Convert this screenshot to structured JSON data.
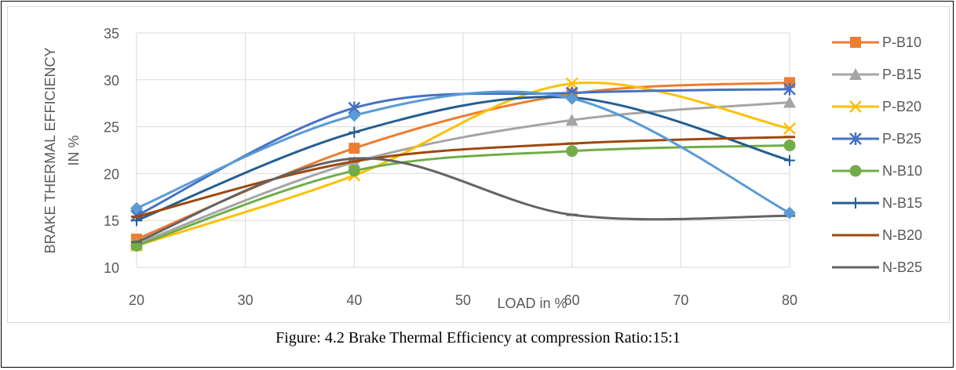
{
  "caption": "Figure: 4.2 Brake Thermal Efficiency at compression Ratio:15:1",
  "chart_data": {
    "type": "line",
    "title": "",
    "xlabel": "LOAD in %",
    "ylabel_lines": [
      "BRAKE THERMAL EFFICIENCY",
      "IN %"
    ],
    "x_ticks": [
      20,
      30,
      40,
      50,
      60,
      70,
      80
    ],
    "y_ticks": [
      10,
      15,
      20,
      25,
      30,
      35
    ],
    "xlim": [
      20,
      80
    ],
    "ylim": [
      10,
      35
    ],
    "grid": true,
    "legend_position": "right",
    "x": [
      20,
      40,
      60,
      80
    ],
    "series": [
      {
        "name": "P-B10",
        "color": "#ED7D31",
        "marker": "square",
        "values": [
          13.0,
          22.7,
          28.5,
          29.7
        ]
      },
      {
        "name": "P-B15",
        "color": "#A5A5A5",
        "marker": "triangle",
        "values": [
          12.5,
          21.2,
          25.7,
          27.6
        ]
      },
      {
        "name": "P-B20",
        "color": "#FFC000",
        "marker": "x",
        "values": [
          12.3,
          19.8,
          29.6,
          24.8
        ]
      },
      {
        "name": "P-B25",
        "color": "#4472C4",
        "marker": "star",
        "values": [
          15.5,
          27.0,
          28.6,
          29.0
        ]
      },
      {
        "name": "N-B10",
        "color": "#70AD47",
        "marker": "circle",
        "values": [
          12.3,
          20.3,
          22.4,
          23.0
        ]
      },
      {
        "name": "N-B15",
        "color": "#255E91",
        "marker": "plus",
        "values": [
          15.0,
          24.4,
          28.1,
          21.4
        ]
      },
      {
        "name": "N-B20",
        "color": "#9E480E",
        "marker": "dash",
        "values": [
          15.4,
          21.3,
          23.2,
          23.9
        ]
      },
      {
        "name": "N-B25",
        "color": "#636363",
        "marker": "dash",
        "values": [
          12.7,
          21.6,
          15.6,
          15.5
        ]
      },
      {
        "name": "",
        "color": "#5B9BD5",
        "marker": "diamond",
        "values": [
          16.3,
          26.2,
          28.0,
          15.8
        ]
      }
    ]
  }
}
